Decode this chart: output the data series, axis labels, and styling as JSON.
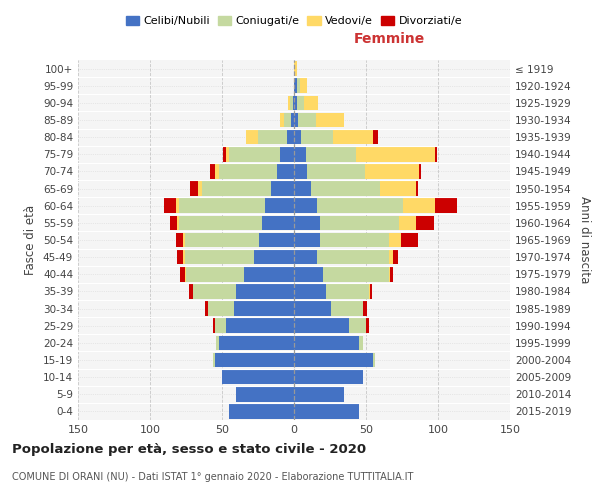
{
  "age_groups": [
    "0-4",
    "5-9",
    "10-14",
    "15-19",
    "20-24",
    "25-29",
    "30-34",
    "35-39",
    "40-44",
    "45-49",
    "50-54",
    "55-59",
    "60-64",
    "65-69",
    "70-74",
    "75-79",
    "80-84",
    "85-89",
    "90-94",
    "95-99",
    "100+"
  ],
  "birth_years": [
    "2015-2019",
    "2010-2014",
    "2005-2009",
    "2000-2004",
    "1995-1999",
    "1990-1994",
    "1985-1989",
    "1980-1984",
    "1975-1979",
    "1970-1974",
    "1965-1969",
    "1960-1964",
    "1955-1959",
    "1950-1954",
    "1945-1949",
    "1940-1944",
    "1935-1939",
    "1930-1934",
    "1925-1929",
    "1920-1924",
    "≤ 1919"
  ],
  "male": {
    "celibe": [
      45,
      40,
      50,
      55,
      52,
      47,
      42,
      40,
      35,
      28,
      24,
      22,
      20,
      16,
      12,
      10,
      5,
      2,
      1,
      0,
      0
    ],
    "coniugato": [
      0,
      0,
      0,
      1,
      2,
      8,
      18,
      30,
      40,
      48,
      52,
      58,
      60,
      48,
      40,
      35,
      20,
      5,
      2,
      0,
      0
    ],
    "vedovo": [
      0,
      0,
      0,
      0,
      0,
      0,
      0,
      0,
      1,
      1,
      1,
      1,
      2,
      3,
      3,
      2,
      8,
      3,
      1,
      0,
      0
    ],
    "divorziato": [
      0,
      0,
      0,
      0,
      0,
      1,
      2,
      3,
      3,
      4,
      5,
      5,
      8,
      5,
      3,
      2,
      0,
      0,
      0,
      0,
      0
    ]
  },
  "female": {
    "nubile": [
      45,
      35,
      48,
      55,
      45,
      38,
      26,
      22,
      20,
      16,
      18,
      18,
      16,
      12,
      9,
      8,
      5,
      3,
      2,
      2,
      0
    ],
    "coniugata": [
      0,
      0,
      0,
      1,
      3,
      12,
      22,
      30,
      46,
      50,
      48,
      55,
      60,
      48,
      40,
      35,
      22,
      12,
      5,
      2,
      0
    ],
    "vedova": [
      0,
      0,
      0,
      0,
      0,
      0,
      0,
      1,
      1,
      3,
      8,
      12,
      22,
      25,
      38,
      55,
      28,
      20,
      10,
      5,
      2
    ],
    "divorziata": [
      0,
      0,
      0,
      0,
      0,
      2,
      3,
      1,
      2,
      3,
      12,
      12,
      15,
      1,
      1,
      1,
      3,
      0,
      0,
      0,
      0
    ]
  },
  "color_celibe": "#4472C4",
  "color_coniugato": "#C5D9A0",
  "color_vedovo": "#FFD966",
  "color_divorziato": "#CC0000",
  "xlim": 150,
  "title": "Popolazione per età, sesso e stato civile - 2020",
  "subtitle": "COMUNE DI ORANI (NU) - Dati ISTAT 1° gennaio 2020 - Elaborazione TUTTITALIA.IT",
  "ylabel_left": "Fasce di età",
  "ylabel_right": "Anni di nascita",
  "xlabel_right": "Femmine",
  "bg_color": "#FFFFFF",
  "grid_color": "#BBBBBB"
}
